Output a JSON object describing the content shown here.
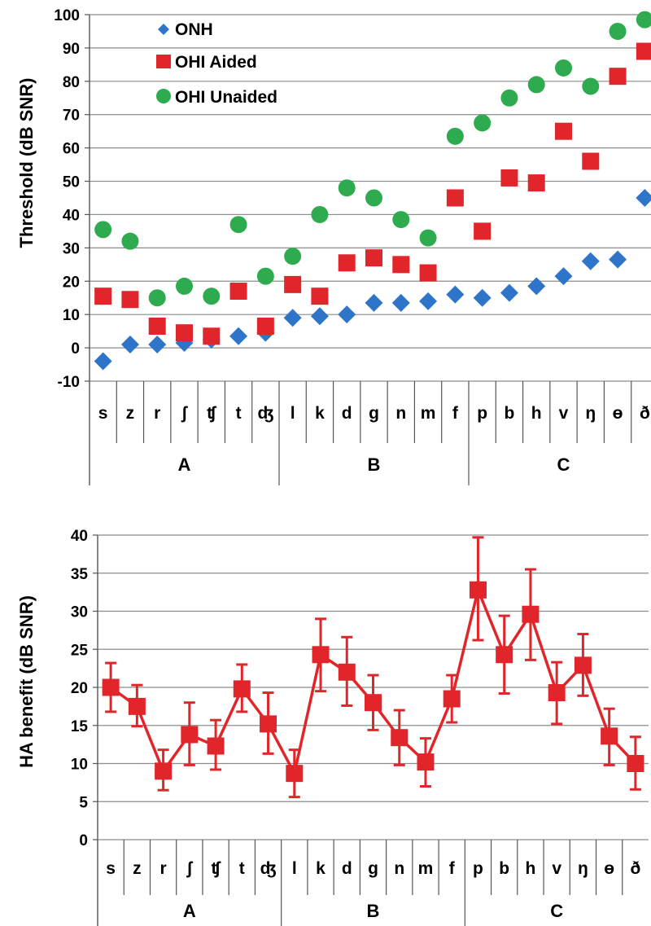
{
  "chart_data": [
    {
      "type": "scatter",
      "ylabel": "Threshold (dB SNR)",
      "ylim": [
        -10,
        100
      ],
      "yticks": [
        -10,
        0,
        10,
        20,
        30,
        40,
        50,
        60,
        70,
        80,
        90,
        100
      ],
      "grid": true,
      "legend_placement": "top-left",
      "categories": [
        "s",
        "z",
        "r",
        "ʃ",
        "ʧ",
        "t",
        "ʤ",
        "l",
        "k",
        "d",
        "g",
        "n",
        "m",
        "f",
        "p",
        "b",
        "h",
        "v",
        "ŋ",
        "ɵ",
        "ð"
      ],
      "groups": [
        {
          "label": "A",
          "count": 7
        },
        {
          "label": "B",
          "count": 7
        },
        {
          "label": "C",
          "count": 7
        }
      ],
      "series": [
        {
          "name": "ONH",
          "marker": "diamond",
          "color": "#2e75c9",
          "values": [
            -4,
            1,
            1,
            1.5,
            2.5,
            3.5,
            4.5,
            9,
            9.5,
            10,
            13.5,
            13.5,
            14,
            16,
            15,
            16.5,
            18.5,
            21.5,
            26,
            26.5,
            45
          ]
        },
        {
          "name": "OHI Aided",
          "marker": "square",
          "color": "#e0262b",
          "values": [
            15.5,
            14.5,
            6.5,
            4.5,
            3.5,
            17,
            6.5,
            19,
            15.5,
            25.5,
            27,
            25,
            22.5,
            45,
            35,
            51,
            49.5,
            65,
            56,
            81.5,
            89
          ]
        },
        {
          "name": "OHI Unaided",
          "marker": "circle",
          "color": "#2eab4e",
          "values": [
            35.5,
            32,
            15,
            18.5,
            15.5,
            37,
            21.5,
            27.5,
            40,
            48,
            45,
            38.5,
            33,
            63.5,
            67.5,
            75,
            79,
            84,
            78.5,
            95,
            98.5
          ]
        }
      ]
    },
    {
      "type": "line",
      "ylabel": "HA benefit (dB SNR)",
      "ylim": [
        0,
        40
      ],
      "yticks": [
        0,
        5,
        10,
        15,
        20,
        25,
        30,
        35,
        40
      ],
      "grid": true,
      "categories": [
        "s",
        "z",
        "r",
        "ʃ",
        "ʧ",
        "t",
        "ʤ",
        "l",
        "k",
        "d",
        "g",
        "n",
        "m",
        "f",
        "p",
        "b",
        "h",
        "v",
        "ŋ",
        "ɵ",
        "ð"
      ],
      "groups": [
        {
          "label": "A",
          "count": 7
        },
        {
          "label": "B",
          "count": 7
        },
        {
          "label": "C",
          "count": 7
        }
      ],
      "series": [
        {
          "name": "",
          "marker": "square",
          "color": "#e0262b",
          "values": [
            20,
            17.5,
            9,
            13.8,
            12.3,
            19.8,
            15.2,
            8.7,
            24.3,
            22,
            18,
            13.4,
            10.2,
            18.5,
            32.8,
            24.3,
            29.6,
            19.3,
            22.9,
            13.6,
            10
          ],
          "err_low": [
            16.8,
            14.9,
            6.5,
            9.8,
            9.2,
            16.8,
            11.3,
            5.6,
            19.5,
            17.6,
            14.4,
            9.8,
            7,
            15.4,
            26.2,
            19.2,
            23.6,
            15.2,
            18.9,
            9.8,
            6.6
          ],
          "err_high": [
            23.2,
            20.3,
            11.8,
            18,
            15.7,
            23,
            19.3,
            11.8,
            29,
            26.6,
            21.6,
            17,
            13.3,
            21.6,
            39.7,
            29.4,
            35.5,
            23.3,
            27,
            17.2,
            13.5
          ]
        }
      ]
    }
  ]
}
